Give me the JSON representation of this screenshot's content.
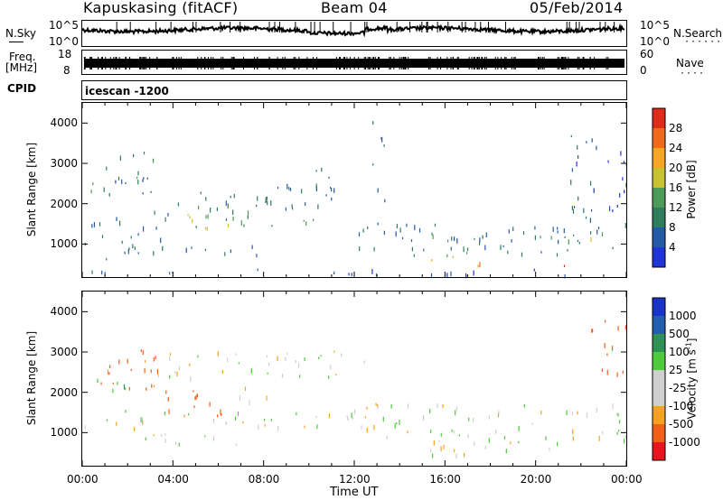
{
  "header": {
    "station": "Kapuskasing (fitACF)",
    "beam": "Beam 04",
    "date": "05/Feb/2014"
  },
  "top_panels": {
    "nsky_label": "N.Sky",
    "nsky_ticks": [
      "10^5",
      "10^0"
    ],
    "nsearch_label": "N.Search",
    "nsearch_ticks": [
      "10^5",
      "10^0"
    ],
    "freq_label_1": "Freq.",
    "freq_label_2": "[MHz]",
    "freq_ticks": [
      "18",
      "8"
    ],
    "nave_label": "Nave",
    "nave_ticks": [
      "60",
      "0"
    ],
    "cpid_label": "CPID",
    "cpid_text": "icescan -1200"
  },
  "xaxis": {
    "ticks": [
      "00:00",
      "04:00",
      "08:00",
      "12:00",
      "16:00",
      "20:00",
      "00:00"
    ],
    "label": "Time UT"
  },
  "colors": {
    "power_scale": [
      "#1f34d8",
      "#245aa6",
      "#2f7d5c",
      "#4e9a58",
      "#c7c234",
      "#f5a623",
      "#f06a1e",
      "#e02a1a"
    ],
    "velocity_scale": [
      "#e8141e",
      "#f0601b",
      "#f5a223",
      "#cfcfcf",
      "#cfcfcf",
      "#4ecb3a",
      "#2f9254",
      "#245cb0",
      "#1a33c8"
    ]
  },
  "chart_data": [
    {
      "type": "heatmap",
      "title": "",
      "xlabel": "Time UT",
      "ylabel": "Slant Range [km]",
      "x_ticks": [
        "00:00",
        "04:00",
        "08:00",
        "12:00",
        "16:00",
        "20:00",
        "00:00"
      ],
      "y_ticks": [
        1000,
        2000,
        3000,
        4000
      ],
      "ylim": [
        180,
        4500
      ],
      "x_range_hours": [
        0,
        24
      ],
      "colorbar": {
        "label": "Power [dB]",
        "ticks": [
          4,
          8,
          12,
          16,
          20,
          24,
          28
        ],
        "range": [
          0,
          32
        ]
      },
      "regions": [
        {
          "t0": 0.3,
          "t1": 3.5,
          "r0": 2150,
          "r1": 2650,
          "level": 9
        },
        {
          "t0": 1.0,
          "t1": 3.2,
          "r0": 2400,
          "r1": 3200,
          "level": 7
        },
        {
          "t0": 2.2,
          "t1": 3.4,
          "r0": 2600,
          "r1": 3300,
          "level": 10
        },
        {
          "t0": 0.2,
          "t1": 4.0,
          "r0": 1100,
          "r1": 1800,
          "level": 8
        },
        {
          "t0": 3.5,
          "t1": 6.5,
          "r0": 1350,
          "r1": 1900,
          "level": 15
        },
        {
          "t0": 4.2,
          "t1": 5.4,
          "r0": 1450,
          "r1": 1750,
          "level": 20
        },
        {
          "t0": 3.0,
          "t1": 9.0,
          "r0": 1800,
          "r1": 2300,
          "level": 9
        },
        {
          "t0": 6.0,
          "t1": 10.5,
          "r0": 1400,
          "r1": 1800,
          "level": 12
        },
        {
          "t0": 7.5,
          "t1": 11.5,
          "r0": 1750,
          "r1": 2400,
          "level": 9
        },
        {
          "t0": 9.0,
          "t1": 11.5,
          "r0": 2300,
          "r1": 2900,
          "level": 8
        },
        {
          "t0": 0.0,
          "t1": 2.5,
          "r0": 850,
          "r1": 1100,
          "level": 10
        },
        {
          "t0": 2.0,
          "t1": 8.0,
          "r0": 650,
          "r1": 1000,
          "level": 8
        },
        {
          "t0": 0.8,
          "t1": 5.0,
          "r0": 600,
          "r1": 800,
          "level": 7
        },
        {
          "t0": 12.0,
          "t1": 24.0,
          "r0": 800,
          "r1": 1500,
          "level": 8
        },
        {
          "t0": 12.5,
          "t1": 24.0,
          "r0": 1050,
          "r1": 1250,
          "level": 13
        },
        {
          "t0": 14.5,
          "t1": 21.5,
          "r0": 650,
          "r1": 950,
          "level": 11
        },
        {
          "t0": 15.0,
          "t1": 18.0,
          "r0": 520,
          "r1": 680,
          "level": 18
        },
        {
          "t0": 17.5,
          "t1": 21.8,
          "r0": 400,
          "r1": 520,
          "level": 26
        },
        {
          "t0": 15.3,
          "t1": 18.2,
          "r0": 400,
          "r1": 500,
          "level": 24
        },
        {
          "t0": 21.5,
          "t1": 24.0,
          "r0": 1500,
          "r1": 3800,
          "level": 6
        },
        {
          "t0": 12.8,
          "t1": 13.4,
          "r0": 2000,
          "r1": 4200,
          "level": 6
        },
        {
          "t0": 0.0,
          "t1": 24.0,
          "r0": 180,
          "r1": 350,
          "level": 5
        }
      ]
    },
    {
      "type": "heatmap",
      "title": "",
      "xlabel": "Time UT",
      "ylabel": "Slant Range [km]",
      "x_ticks": [
        "00:00",
        "04:00",
        "08:00",
        "12:00",
        "16:00",
        "20:00",
        "00:00"
      ],
      "y_ticks": [
        1000,
        2000,
        3000,
        4000
      ],
      "ylim": [
        180,
        4500
      ],
      "x_range_hours": [
        0,
        24
      ],
      "colorbar": {
        "label": "Velocity [m s^-1]",
        "ticks": [
          "1000",
          "500",
          "100",
          "25",
          "-25",
          "-100",
          "-500",
          "-1000"
        ]
      },
      "regions": [
        {
          "t0": 0.2,
          "t1": 3.5,
          "r0": 2150,
          "r1": 2800,
          "level": -150
        },
        {
          "t0": 1.5,
          "t1": 3.5,
          "r0": 2700,
          "r1": 3300,
          "level": -300
        },
        {
          "t0": 3.5,
          "t1": 6.5,
          "r0": 1400,
          "r1": 1900,
          "level": -180
        },
        {
          "t0": 2.0,
          "t1": 5.5,
          "r0": 1800,
          "r1": 2200,
          "level": -120
        },
        {
          "t0": 6.5,
          "t1": 9.0,
          "r0": 1700,
          "r1": 2100,
          "level": -40
        },
        {
          "t0": 3.0,
          "t1": 12.5,
          "r0": 2300,
          "r1": 3000,
          "level": 0
        },
        {
          "t0": 0.0,
          "t1": 12.5,
          "r0": 1100,
          "r1": 1600,
          "level": 0
        },
        {
          "t0": 1.0,
          "t1": 7.0,
          "r0": 650,
          "r1": 950,
          "level": 0
        },
        {
          "t0": 12.5,
          "t1": 24.0,
          "r0": 800,
          "r1": 1700,
          "level": 0
        },
        {
          "t0": 14.5,
          "t1": 22.0,
          "r0": 400,
          "r1": 800,
          "level": 0
        },
        {
          "t0": 22.3,
          "t1": 24.0,
          "r0": 2400,
          "r1": 3800,
          "level": -250
        },
        {
          "t0": 0.5,
          "t1": 2.0,
          "r0": 2000,
          "r1": 2600,
          "level": 80
        }
      ]
    }
  ]
}
